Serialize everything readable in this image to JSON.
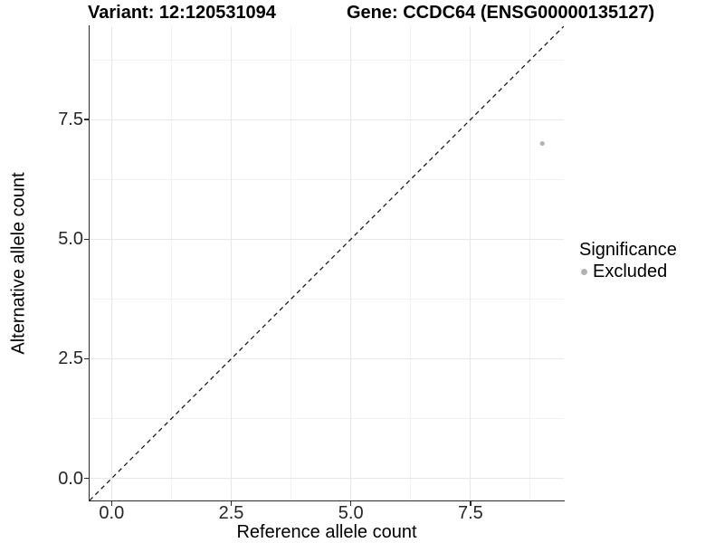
{
  "chart_data": {
    "type": "scatter",
    "title_left": "Variant: 12:120531094",
    "title_right": "Gene: CCDC64 (ENSG00000135127)",
    "xlabel": "Reference allele count",
    "ylabel": "Alternative allele count",
    "xlim": [
      -0.46,
      9.45
    ],
    "ylim": [
      -0.46,
      9.45
    ],
    "x_major_ticks": [
      0,
      2.5,
      5,
      7.5
    ],
    "x_tick_labels": [
      "0.0",
      "2.5",
      "5.0",
      "7.5"
    ],
    "y_major_ticks": [
      0,
      2.5,
      5,
      7.5
    ],
    "y_tick_labels": [
      "0.0",
      "2.5",
      "5.0",
      "7.5"
    ],
    "x_minor_ticks": [
      1.25,
      3.75,
      6.25,
      8.75
    ],
    "y_minor_ticks": [
      1.25,
      3.75,
      6.25,
      8.75
    ],
    "grid": "major+minor gridlines on white background",
    "reference_line": {
      "type": "identity",
      "slope": 1,
      "intercept": 0,
      "style": "dashed",
      "color": "#1c1c1c"
    },
    "points": [
      {
        "x": 9,
        "y": 7,
        "group": "Excluded"
      }
    ],
    "legend": {
      "title": "Significance",
      "position": "right",
      "items": [
        {
          "label": "Excluded",
          "color": "#b3b3b3"
        }
      ]
    }
  },
  "colors": {
    "background": "#ffffff",
    "axis_line": "#2b2b2b",
    "tick_text": "#262626",
    "grid_major": "#e8e8e8",
    "grid_minor": "#f2f2f2",
    "point": "#b9b9b9",
    "dashed_line": "#1c1c1c"
  }
}
